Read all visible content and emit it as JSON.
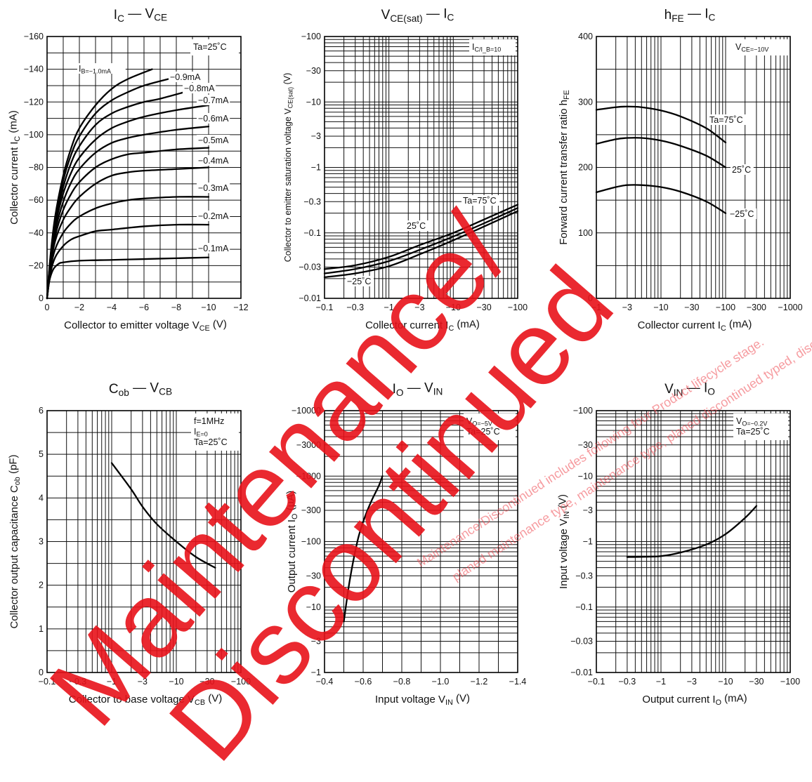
{
  "watermark": {
    "line1": "Maintenance/",
    "line2": "Discontinued",
    "small1": "Maintenance/Discontinued includes following four Product lifecycle stage.",
    "small2": "planed maintenance type, maintenance type, planed discontinued typed, discontinued type)",
    "color": "#e8121a"
  },
  "chart_data": [
    {
      "id": "ic_vce",
      "type": "line",
      "title": "I_C — V_CE",
      "xlabel": "Collector to emitter voltage   V_CE   (V)",
      "ylabel": "Collector current   I_C   (mA)",
      "xscale": "linear",
      "yscale": "linear",
      "xlim": [
        0,
        -12
      ],
      "ylim": [
        0,
        -160
      ],
      "xticks": [
        0,
        -2,
        -4,
        -6,
        -8,
        -10,
        -12
      ],
      "xticklabels": [
        "0",
        "−2",
        "−4",
        "−6",
        "−8",
        "−10",
        "−12"
      ],
      "yticks": [
        0,
        -20,
        -40,
        -60,
        -80,
        -100,
        -120,
        -140,
        -160
      ],
      "yticklabels": [
        "0",
        "−20",
        "−40",
        "−60",
        "−80",
        "−100",
        "−120",
        "−140",
        "−160"
      ],
      "xgrid": [
        -1,
        -2,
        -3,
        -4,
        -5,
        -6,
        -7,
        -8,
        -9,
        -10
      ],
      "ygrid": [
        -10,
        -20,
        -30,
        -40,
        -50,
        -60,
        -70,
        -80,
        -90,
        -100,
        -110,
        -120,
        -130,
        -140,
        -150
      ],
      "info": [
        "Ta=25˚C"
      ],
      "series": [
        {
          "name": "I_B=−1.0mA",
          "x": [
            0,
            -0.2,
            -0.5,
            -1,
            -1.5,
            -2,
            -3,
            -4,
            -5,
            -6.5
          ],
          "y": [
            0,
            -25,
            -50,
            -75,
            -92,
            -104,
            -118,
            -128,
            -134,
            -140
          ]
        },
        {
          "name": "−0.9mA",
          "x": [
            0,
            -0.2,
            -0.5,
            -1,
            -1.5,
            -2,
            -3,
            -4,
            -5,
            -6,
            -7.5
          ],
          "y": [
            0,
            -24,
            -48,
            -72,
            -88,
            -99,
            -113,
            -121,
            -126,
            -130,
            -134
          ]
        },
        {
          "name": "−0.8mA",
          "x": [
            0,
            -0.2,
            -0.5,
            -1,
            -1.5,
            -2,
            -3,
            -4,
            -5,
            -6,
            -7,
            -8.5
          ],
          "y": [
            0,
            -23,
            -46,
            -68,
            -83,
            -93,
            -106,
            -113,
            -117,
            -120,
            -122,
            -126
          ]
        },
        {
          "name": "−0.7mA",
          "x": [
            0,
            -0.2,
            -0.5,
            -1,
            -1.5,
            -2,
            -3,
            -4,
            -5,
            -6,
            -8,
            -10
          ],
          "y": [
            0,
            -22,
            -44,
            -64,
            -77,
            -86,
            -97,
            -104,
            -108,
            -111,
            -115,
            -118
          ]
        },
        {
          "name": "−0.6mA",
          "x": [
            0,
            -0.2,
            -0.5,
            -1,
            -1.5,
            -2,
            -3,
            -4,
            -5,
            -6,
            -8,
            -10
          ],
          "y": [
            0,
            -21,
            -41,
            -59,
            -71,
            -79,
            -89,
            -95,
            -98,
            -100,
            -103,
            -105
          ]
        },
        {
          "name": "−0.5mA",
          "x": [
            0,
            -0.2,
            -0.5,
            -1,
            -1.5,
            -2,
            -3,
            -4,
            -5,
            -6,
            -8,
            -10
          ],
          "y": [
            0,
            -20,
            -38,
            -54,
            -64,
            -71,
            -80,
            -85,
            -88,
            -89,
            -91,
            -92
          ]
        },
        {
          "name": "−0.4mA",
          "x": [
            0,
            -0.2,
            -0.5,
            -1,
            -1.5,
            -2,
            -3,
            -4,
            -5,
            -6,
            -8,
            -10
          ],
          "y": [
            0,
            -19,
            -35,
            -48,
            -56,
            -62,
            -70,
            -75,
            -77,
            -78,
            -79,
            -80
          ]
        },
        {
          "name": "−0.3mA",
          "x": [
            0,
            -0.2,
            -0.5,
            -1,
            -1.5,
            -2,
            -3,
            -4,
            -5,
            -6,
            -8,
            -10
          ],
          "y": [
            0,
            -17,
            -30,
            -40,
            -46,
            -50,
            -55,
            -58,
            -60,
            -61,
            -62,
            -62
          ]
        },
        {
          "name": "−0.2mA",
          "x": [
            0,
            -0.2,
            -0.5,
            -1,
            -1.5,
            -2,
            -3,
            -4,
            -6,
            -8,
            -10
          ],
          "y": [
            0,
            -15,
            -25,
            -32,
            -36,
            -38,
            -41,
            -42,
            -44,
            -45,
            -45
          ]
        },
        {
          "name": "−0.1mA",
          "x": [
            0,
            -0.1,
            -0.2,
            -0.4,
            -0.7,
            -1,
            -2,
            -4,
            -6,
            -8,
            -10
          ],
          "y": [
            0,
            -8,
            -13,
            -18,
            -21,
            -22,
            -23,
            -23.5,
            -24,
            -24.5,
            -25
          ]
        }
      ]
    },
    {
      "id": "vcesat_ic",
      "type": "line",
      "title": "V_CE(sat) — I_C",
      "xlabel": "Collector current   I_C   (mA)",
      "ylabel": "Collector to emitter saturation voltage   V_CE(sat)   (V)",
      "xscale": "log",
      "yscale": "log",
      "xlim": [
        -0.1,
        -100
      ],
      "ylim": [
        -0.01,
        -100
      ],
      "xticks": [
        -0.1,
        -0.3,
        -1,
        -3,
        -10,
        -30,
        -100
      ],
      "xticklabels": [
        "−0.1",
        "−0.3",
        "−1",
        "−3",
        "−10",
        "−30",
        "−100"
      ],
      "yticks": [
        -0.01,
        -0.03,
        -0.1,
        -0.3,
        -1,
        -3,
        -10,
        -30,
        -100
      ],
      "yticklabels": [
        "−0.01",
        "−0.03",
        "−0.1",
        "−0.3",
        "−1",
        "−3",
        "−10",
        "−30",
        "−100"
      ],
      "info": [
        "I_C/I_B=10"
      ],
      "series": [
        {
          "name": "Ta=75˚C",
          "x": [
            -0.1,
            -0.3,
            -1,
            -3,
            -10,
            -30,
            -100
          ],
          "y": [
            -0.028,
            -0.032,
            -0.043,
            -0.065,
            -0.1,
            -0.16,
            -0.27
          ]
        },
        {
          "name": "25˚C",
          "x": [
            -0.1,
            -0.3,
            -1,
            -3,
            -10,
            -30,
            -100
          ],
          "y": [
            -0.024,
            -0.028,
            -0.037,
            -0.055,
            -0.088,
            -0.14,
            -0.24
          ]
        },
        {
          "name": "−25˚C",
          "x": [
            -0.1,
            -0.3,
            -1,
            -3,
            -10,
            -30,
            -100
          ],
          "y": [
            -0.021,
            -0.024,
            -0.031,
            -0.047,
            -0.077,
            -0.125,
            -0.215
          ]
        }
      ]
    },
    {
      "id": "hfe_ic",
      "type": "line",
      "title": "h_FE — I_C",
      "xlabel": "Collector current   I_C   (mA)",
      "ylabel": "Forward current transfer ratio   h_FE",
      "xscale": "log",
      "yscale": "linear",
      "xlim": [
        -1,
        -1000
      ],
      "ylim": [
        0,
        400
      ],
      "xticks": [
        -1,
        -3,
        -10,
        -30,
        -100,
        -300,
        -1000
      ],
      "xticklabels": [
        "−1",
        "−3",
        "−10",
        "−30",
        "−100",
        "−300",
        "−1000"
      ],
      "yticks": [
        0,
        100,
        200,
        300,
        400
      ],
      "yticklabels": [
        "0",
        "100",
        "200",
        "300",
        "400"
      ],
      "ygrid": [
        50,
        100,
        150,
        200,
        250,
        300,
        350
      ],
      "info": [
        "V_CE=−10V"
      ],
      "series": [
        {
          "name": "Ta=75˚C",
          "x": [
            -1,
            -2,
            -3,
            -5,
            -10,
            -20,
            -50,
            -100
          ],
          "y": [
            288,
            292,
            293,
            292,
            287,
            278,
            260,
            238
          ]
        },
        {
          "name": "25˚C",
          "x": [
            -1,
            -2,
            -3,
            -5,
            -10,
            -20,
            -50,
            -100
          ],
          "y": [
            236,
            243,
            245,
            245,
            241,
            233,
            218,
            200
          ]
        },
        {
          "name": "−25˚C",
          "x": [
            -1,
            -2,
            -3,
            -5,
            -10,
            -20,
            -50,
            -100
          ],
          "y": [
            162,
            170,
            173,
            173,
            170,
            163,
            148,
            130
          ]
        }
      ]
    },
    {
      "id": "cob_vcb",
      "type": "line",
      "title": "C_ob — V_CB",
      "xlabel": "Collector to base voltage   V_CB   (V)",
      "ylabel": "Collector output capacitance   C_ob   (pF)",
      "xscale": "log",
      "yscale": "linear",
      "xlim": [
        -0.1,
        -100
      ],
      "ylim": [
        0,
        6
      ],
      "xticks": [
        -0.1,
        -0.3,
        -1,
        -3,
        -10,
        -30,
        -100
      ],
      "xticklabels": [
        "−0.1",
        "−0.3",
        "−1",
        "−3",
        "−10",
        "−30",
        "−100"
      ],
      "yticks": [
        0,
        1,
        2,
        3,
        4,
        5,
        6
      ],
      "yticklabels": [
        "0",
        "1",
        "2",
        "3",
        "4",
        "5",
        "6"
      ],
      "ygrid": [
        0.5,
        1,
        1.5,
        2,
        2.5,
        3,
        3.5,
        4,
        4.5,
        5,
        5.5
      ],
      "info": [
        "f=1MHz",
        "I_E=0",
        "Ta=25˚C"
      ],
      "series": [
        {
          "name": "",
          "x": [
            -1,
            -2,
            -3,
            -5,
            -10,
            -20,
            -40
          ],
          "y": [
            4.8,
            4.2,
            3.8,
            3.4,
            3.0,
            2.65,
            2.4
          ]
        }
      ]
    },
    {
      "id": "io_vin",
      "type": "line",
      "title": "I_O — V_IN",
      "xlabel": "Input voltage   V_IN   (V)",
      "ylabel": "Output current   I_O   (µA)",
      "xscale": "linear",
      "yscale": "log",
      "xlim": [
        -0.4,
        -1.4
      ],
      "ylim": [
        -1,
        -10000
      ],
      "xticks": [
        -0.4,
        -0.6,
        -0.8,
        -1.0,
        -1.2,
        -1.4
      ],
      "xticklabels": [
        "−0.4",
        "−0.6",
        "−0.8",
        "−1.0",
        "−1.2",
        "−1.4"
      ],
      "yticks": [
        -1,
        -3,
        -10,
        -30,
        -100,
        -300,
        -1000,
        -3000,
        -10000
      ],
      "yticklabels": [
        "−1",
        "−3",
        "−10",
        "−30",
        "−100",
        "−300",
        "−1000",
        "−3000",
        "−10000"
      ],
      "xgrid": [
        -0.5,
        -0.6,
        -0.7,
        -0.8,
        -0.9,
        -1.0,
        -1.1,
        -1.2,
        -1.3
      ],
      "info": [
        "V_O=−5V",
        "Ta=25˚C"
      ],
      "series": [
        {
          "name": "",
          "x": [
            -0.5,
            -0.53,
            -0.57,
            -0.6,
            -0.64,
            -0.68,
            -0.7
          ],
          "y": [
            -6,
            -25,
            -100,
            -200,
            -400,
            -700,
            -1000
          ]
        }
      ]
    },
    {
      "id": "vin_io",
      "type": "line",
      "title": "V_IN — I_O",
      "xlabel": "Output current   I_O   (mA)",
      "ylabel": "Input voltage   V_IN   (V)",
      "xscale": "log",
      "yscale": "log",
      "xlim": [
        -0.1,
        -100
      ],
      "ylim": [
        -0.01,
        -100
      ],
      "xticks": [
        -0.1,
        -0.3,
        -1,
        -3,
        -10,
        -30,
        -100
      ],
      "xticklabels": [
        "−0.1",
        "−0.3",
        "−1",
        "−3",
        "−10",
        "−30",
        "−100"
      ],
      "yticks": [
        -0.01,
        -0.03,
        -0.1,
        -0.3,
        -1,
        -3,
        -10,
        -30,
        -100
      ],
      "yticklabels": [
        "−0.01",
        "−0.03",
        "−0.1",
        "−0.3",
        "−1",
        "−3",
        "−10",
        "−30",
        "−100"
      ],
      "info": [
        "V_O=−0.2V",
        "Ta=25˚C"
      ],
      "series": [
        {
          "name": "",
          "x": [
            -0.3,
            -0.5,
            -1,
            -2,
            -5,
            -10,
            -20,
            -30
          ],
          "y": [
            -0.58,
            -0.585,
            -0.6,
            -0.68,
            -0.9,
            -1.3,
            -2.3,
            -3.5
          ]
        }
      ]
    }
  ]
}
